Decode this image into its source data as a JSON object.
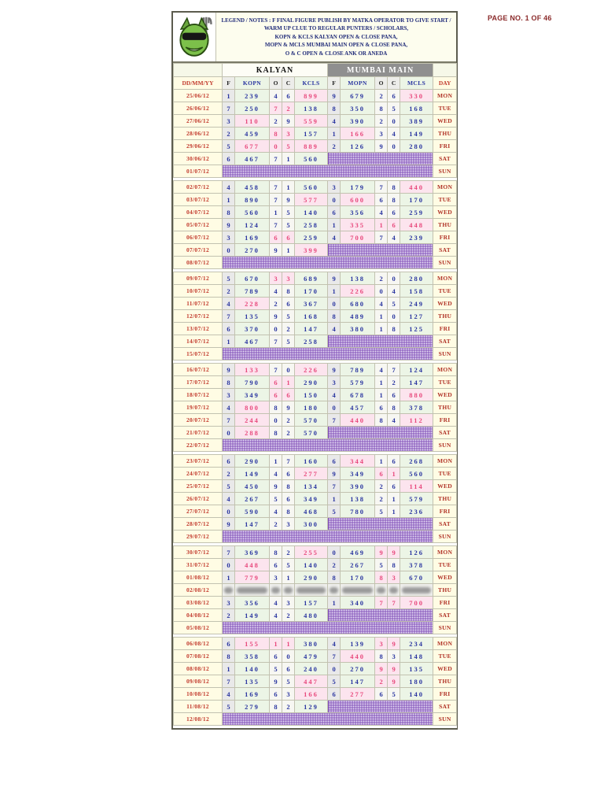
{
  "page": {
    "page_no": "PAGE NO. 1 OF 46"
  },
  "legend": {
    "logo_icon": "matka-mascot-logo",
    "lines": [
      "LEGEND / NOTES : F  FINAL FIGURE PUBLISH BY MATKA OPERATOR TO GIVE START /",
      "WARM UP CLUE TO REGULAR PUNTERS / SCHOLARS,",
      "KOPN & KCLS  KALYAN OPEN & CLOSE PANA,",
      "MOPN & MCLS  MUMBAI MAIN OPEN & CLOSE PANA,",
      "O & C  OPEN & CLOSE ANK OR ANEDA"
    ]
  },
  "colors": {
    "number_navy": "#2a35a0",
    "number_red": "#e8487c",
    "date_red": "#c23b2e",
    "mumbai_header_bg": "#8f8f8f",
    "holiday_hatch_purple": "#7a46b4"
  },
  "table": {
    "groups": [
      "KALYAN",
      "MUMBAI MAIN"
    ],
    "columns": [
      "DD/MM/YY",
      "F",
      "KOPN",
      "O",
      "C",
      "KCLS",
      "F",
      "MOPN",
      "O",
      "C",
      "MCLS",
      "DAY"
    ],
    "rows": [
      {
        "date": "25/06/12",
        "day": "MON",
        "k": [
          "1",
          "239",
          "4",
          "6",
          "899*"
        ],
        "m": [
          "9",
          "679",
          "2",
          "6",
          "330*"
        ]
      },
      {
        "date": "26/06/12",
        "day": "TUE",
        "k": [
          "7",
          "250",
          "7*",
          "2*",
          "138"
        ],
        "m": [
          "8",
          "350",
          "8",
          "5",
          "168"
        ]
      },
      {
        "date": "27/06/12",
        "day": "WED",
        "k": [
          "3",
          "110*",
          "2",
          "9",
          "559*"
        ],
        "m": [
          "4",
          "390",
          "2",
          "0",
          "389"
        ]
      },
      {
        "date": "28/06/12",
        "day": "THU",
        "k": [
          "2",
          "459",
          "8*",
          "3*",
          "157"
        ],
        "m": [
          "1",
          "166*",
          "3",
          "4",
          "149"
        ]
      },
      {
        "date": "29/06/12",
        "day": "FRI",
        "k": [
          "5",
          "677*",
          "0*",
          "5*",
          "889*"
        ],
        "m": [
          "2",
          "126",
          "9",
          "0",
          "280"
        ]
      },
      {
        "date": "30/06/12",
        "day": "SAT",
        "k": [
          "6",
          "467",
          "7",
          "1",
          "560"
        ],
        "m": null
      },
      {
        "date": "01/07/12",
        "day": "SUN",
        "k": null,
        "m": null
      },
      {
        "date": "02/07/12",
        "day": "MON",
        "k": [
          "4",
          "458",
          "7",
          "1",
          "560"
        ],
        "m": [
          "3",
          "179",
          "7",
          "8",
          "440*"
        ]
      },
      {
        "date": "03/07/12",
        "day": "TUE",
        "k": [
          "1",
          "890",
          "7",
          "9",
          "577*"
        ],
        "m": [
          "0",
          "600*",
          "6",
          "8",
          "170"
        ]
      },
      {
        "date": "04/07/12",
        "day": "WED",
        "k": [
          "8",
          "560",
          "1",
          "5",
          "140"
        ],
        "m": [
          "6",
          "356",
          "4",
          "6",
          "259"
        ]
      },
      {
        "date": "05/07/12",
        "day": "THU",
        "k": [
          "9",
          "124",
          "7",
          "5",
          "258"
        ],
        "m": [
          "1",
          "335*",
          "1*",
          "6*",
          "448*"
        ]
      },
      {
        "date": "06/07/12",
        "day": "FRI",
        "k": [
          "3",
          "169",
          "6*",
          "6*",
          "259"
        ],
        "m": [
          "4",
          "700*",
          "7",
          "4",
          "239"
        ]
      },
      {
        "date": "07/07/12",
        "day": "SAT",
        "k": [
          "0",
          "270",
          "9",
          "1",
          "399*"
        ],
        "m": null
      },
      {
        "date": "08/07/12",
        "day": "SUN",
        "k": null,
        "m": null
      },
      {
        "date": "09/07/12",
        "day": "MON",
        "k": [
          "5",
          "670",
          "3*",
          "3*",
          "689"
        ],
        "m": [
          "9",
          "138",
          "2",
          "0",
          "280"
        ]
      },
      {
        "date": "10/07/12",
        "day": "TUE",
        "k": [
          "2",
          "789",
          "4",
          "8",
          "170"
        ],
        "m": [
          "1",
          "226*",
          "0",
          "4",
          "158"
        ]
      },
      {
        "date": "11/07/12",
        "day": "WED",
        "k": [
          "4",
          "228*",
          "2",
          "6",
          "367"
        ],
        "m": [
          "0",
          "680",
          "4",
          "5",
          "249"
        ]
      },
      {
        "date": "12/07/12",
        "day": "THU",
        "k": [
          "7",
          "135",
          "9",
          "5",
          "168"
        ],
        "m": [
          "8",
          "489",
          "1",
          "0",
          "127"
        ]
      },
      {
        "date": "13/07/12",
        "day": "FRI",
        "k": [
          "6",
          "370",
          "0",
          "2",
          "147"
        ],
        "m": [
          "4",
          "380",
          "1",
          "8",
          "125"
        ]
      },
      {
        "date": "14/07/12",
        "day": "SAT",
        "k": [
          "1",
          "467",
          "7",
          "5",
          "258"
        ],
        "m": null
      },
      {
        "date": "15/07/12",
        "day": "SUN",
        "k": null,
        "m": null
      },
      {
        "date": "16/07/12",
        "day": "MON",
        "k": [
          "9",
          "133*",
          "7",
          "0",
          "226*"
        ],
        "m": [
          "9",
          "789",
          "4",
          "7",
          "124"
        ]
      },
      {
        "date": "17/07/12",
        "day": "TUE",
        "k": [
          "8",
          "790",
          "6*",
          "1*",
          "290"
        ],
        "m": [
          "3",
          "579",
          "1",
          "2",
          "147"
        ]
      },
      {
        "date": "18/07/12",
        "day": "WED",
        "k": [
          "3",
          "349",
          "6*",
          "6*",
          "150"
        ],
        "m": [
          "4",
          "678",
          "1",
          "6",
          "880*"
        ]
      },
      {
        "date": "19/07/12",
        "day": "THU",
        "k": [
          "4",
          "800*",
          "8",
          "9",
          "180"
        ],
        "m": [
          "0",
          "457",
          "6",
          "8",
          "378"
        ]
      },
      {
        "date": "20/07/12",
        "day": "FRI",
        "k": [
          "7",
          "244*",
          "0",
          "2",
          "570"
        ],
        "m": [
          "7",
          "440*",
          "8",
          "4",
          "112*"
        ]
      },
      {
        "date": "21/07/12",
        "day": "SAT",
        "k": [
          "0",
          "288*",
          "8",
          "2",
          "570"
        ],
        "m": null
      },
      {
        "date": "22/07/12",
        "day": "SUN",
        "k": null,
        "m": null
      },
      {
        "date": "23/07/12",
        "day": "MON",
        "k": [
          "6",
          "290",
          "1",
          "7",
          "160"
        ],
        "m": [
          "6",
          "344*",
          "1",
          "6",
          "268"
        ]
      },
      {
        "date": "24/07/12",
        "day": "TUE",
        "k": [
          "2",
          "149",
          "4",
          "6",
          "277*"
        ],
        "m": [
          "9",
          "349",
          "6*",
          "1*",
          "560"
        ]
      },
      {
        "date": "25/07/12",
        "day": "WED",
        "k": [
          "5",
          "450",
          "9",
          "8",
          "134"
        ],
        "m": [
          "7",
          "390",
          "2",
          "6",
          "114*"
        ]
      },
      {
        "date": "26/07/12",
        "day": "THU",
        "k": [
          "4",
          "267",
          "5",
          "6",
          "349"
        ],
        "m": [
          "1",
          "138",
          "2",
          "1",
          "579"
        ]
      },
      {
        "date": "27/07/12",
        "day": "FRI",
        "k": [
          "0",
          "590",
          "4",
          "8",
          "468"
        ],
        "m": [
          "5",
          "780",
          "5",
          "1",
          "236"
        ]
      },
      {
        "date": "28/07/12",
        "day": "SAT",
        "k": [
          "9",
          "147",
          "2",
          "3",
          "300"
        ],
        "m": null
      },
      {
        "date": "29/07/12",
        "day": "SUN",
        "k": null,
        "m": null
      },
      {
        "date": "30/07/12",
        "day": "MON",
        "k": [
          "7",
          "369",
          "8",
          "2",
          "255*"
        ],
        "m": [
          "0",
          "469",
          "9*",
          "9*",
          "126"
        ]
      },
      {
        "date": "31/07/12",
        "day": "TUE",
        "k": [
          "0",
          "448*",
          "6",
          "5",
          "140"
        ],
        "m": [
          "2",
          "267",
          "5",
          "8",
          "378"
        ]
      },
      {
        "date": "01/08/12",
        "day": "WED",
        "k": [
          "1",
          "779*",
          "3",
          "1",
          "290"
        ],
        "m": [
          "8",
          "170",
          "8*",
          "3*",
          "670"
        ]
      },
      {
        "date": "02/08/12",
        "day": "THU",
        "blur": true
      },
      {
        "date": "03/08/12",
        "day": "FRI",
        "k": [
          "3",
          "356",
          "4",
          "3",
          "157"
        ],
        "m": [
          "1",
          "340",
          "7*",
          "7*",
          "700*"
        ]
      },
      {
        "date": "04/08/12",
        "day": "SAT",
        "k": [
          "2",
          "149",
          "4",
          "2",
          "480"
        ],
        "m": null
      },
      {
        "date": "05/08/12",
        "day": "SUN",
        "k": null,
        "m": null
      },
      {
        "date": "06/08/12",
        "day": "MON",
        "k": [
          "6",
          "155*",
          "1*",
          "1*",
          "380"
        ],
        "m": [
          "4",
          "139",
          "3*",
          "9*",
          "234"
        ]
      },
      {
        "date": "07/08/12",
        "day": "TUE",
        "k": [
          "8",
          "358",
          "6",
          "0",
          "479"
        ],
        "m": [
          "7",
          "440*",
          "8",
          "3",
          "148"
        ]
      },
      {
        "date": "08/08/12",
        "day": "WED",
        "k": [
          "1",
          "140",
          "5",
          "6",
          "240"
        ],
        "m": [
          "0",
          "270",
          "9*",
          "9*",
          "135"
        ]
      },
      {
        "date": "09/08/12",
        "day": "THU",
        "k": [
          "7",
          "135",
          "9",
          "5",
          "447*"
        ],
        "m": [
          "5",
          "147",
          "2*",
          "9*",
          "180"
        ]
      },
      {
        "date": "10/08/12",
        "day": "FRI",
        "k": [
          "4",
          "169",
          "6",
          "3",
          "166*"
        ],
        "m": [
          "6",
          "277*",
          "6",
          "5",
          "140"
        ]
      },
      {
        "date": "11/08/12",
        "day": "SAT",
        "k": [
          "5",
          "279",
          "8",
          "2",
          "129"
        ],
        "m": null
      },
      {
        "date": "12/08/12",
        "day": "SUN",
        "k": null,
        "m": null
      }
    ]
  }
}
